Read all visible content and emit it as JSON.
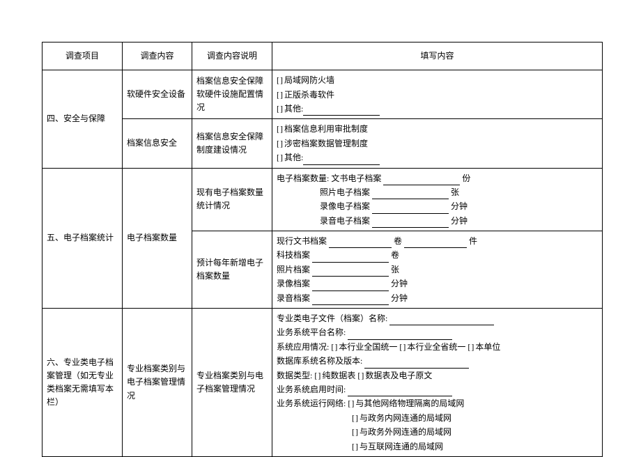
{
  "header": {
    "c1": "调查项目",
    "c2": "调查内容",
    "c3": "调查内容说明",
    "c4": "填写内容"
  },
  "rows": {
    "s4": {
      "project": "四、安全与保障",
      "a": {
        "item": "软硬件安全设备",
        "desc": "档案信息安全保障软硬件设施配置情况",
        "cb1": "局域网防火墙",
        "cb2": "正版杀毒软件",
        "cb3": "其他:"
      },
      "b": {
        "item": "档案信息安全",
        "desc": "档案信息安全保障制度建设情况",
        "cb1": "档案信息利用审批制度",
        "cb2": "涉密档案数据管理制度",
        "cb3": "其他:"
      }
    },
    "s5": {
      "project": "五、电子档案统计",
      "item": "电子档案数量",
      "a": {
        "desc": "现有电子档案数量统计情况",
        "l1a": "电子档案数量: 文书电子档案",
        "l1b": "份",
        "l2a": "照片电子档案",
        "l2b": "张",
        "l3a": "录像电子档案",
        "l3b": "分钟",
        "l4a": "录音电子档案",
        "l4b": "分钟"
      },
      "b": {
        "desc": "预计每年新增电子档案数量",
        "l1a": "现行文书档案",
        "l1b": "卷",
        "l1c": "件",
        "l2a": "科技档案",
        "l2b": "卷",
        "l3a": "照片档案",
        "l3b": "张",
        "l4a": "录像档案",
        "l4b": "分钟",
        "l5a": "录音档案",
        "l5b": "分钟"
      }
    },
    "s6": {
      "project": "六、专业类电子档案管理（如无专业类档案无需填写本栏）",
      "item": "专业档案类别与电子档案管理情况",
      "desc": "专业档案类别与电子档案管理情况",
      "l1": "专业类电子文件（档案）名称:",
      "l2": "业务系统平台名称:",
      "l3": "系统应用情况:",
      "l3a": "本行业全国统一",
      "l3b": "本行业全省统一",
      "l3c": "本单位",
      "l4": "数据库系统名称及版本:",
      "l5": "数据类型:",
      "l5a": "纯数据表",
      "l5b": "数据表及电子原文",
      "l6": "业务系统启用时间:",
      "l7": "业务系统运行网络:",
      "l7a": "与其他网络物理隔离的局域网",
      "l7b": "与政务内网连通的局域网",
      "l7c": "与政务外网连通的局域网",
      "l7d": "与互联网连通的局域网"
    }
  }
}
